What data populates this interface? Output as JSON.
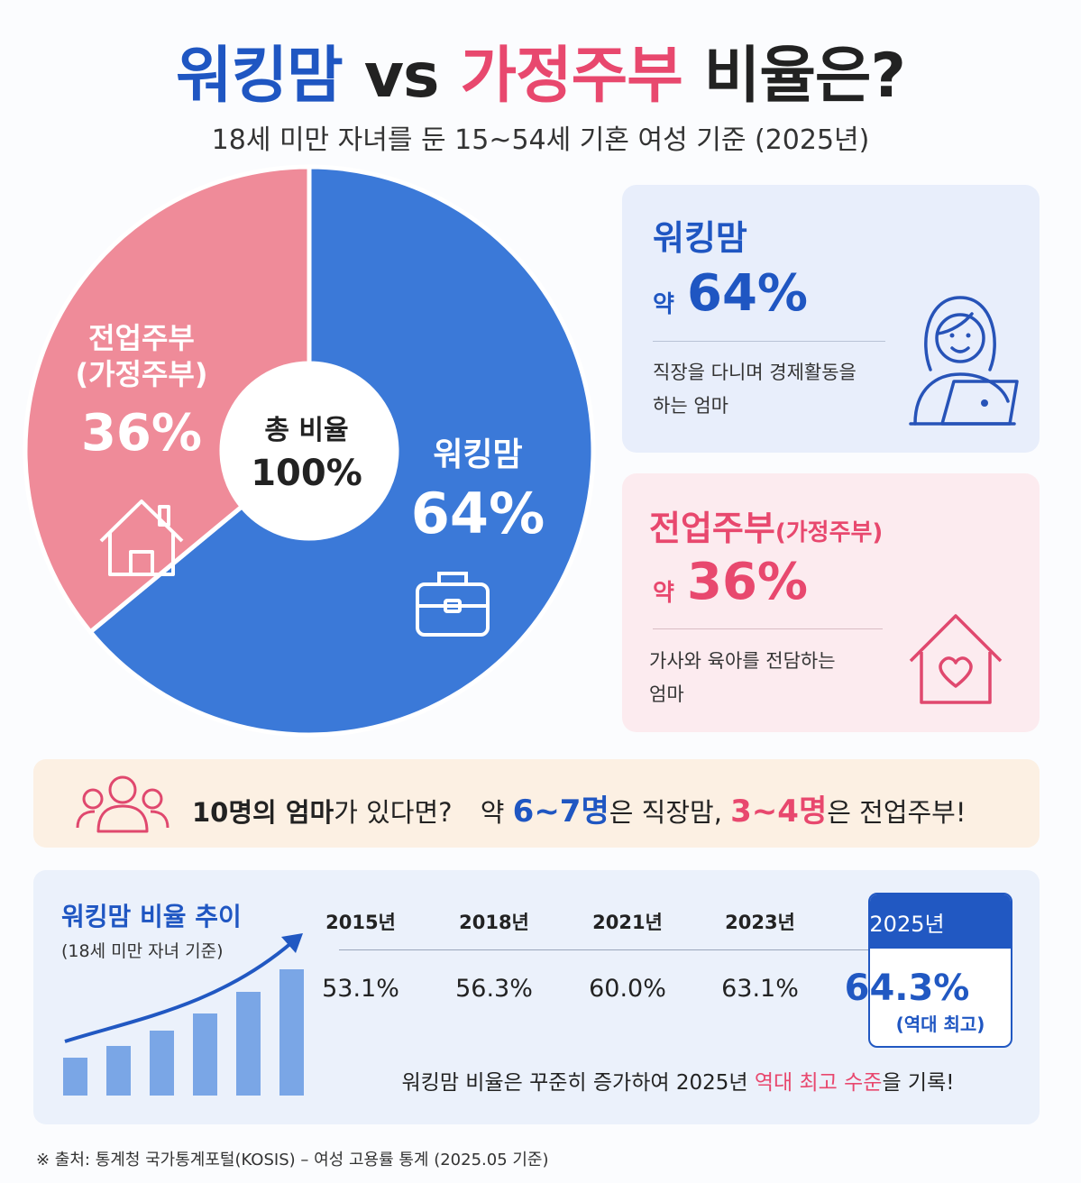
{
  "header": {
    "title_parts": [
      "워킹맘",
      "vs",
      "가정주부",
      "비율은?"
    ],
    "subtitle": "18세 미만 자녀를 둔 15~54세 기혼 여성 기준 (2025년)"
  },
  "chart_data": {
    "type": "pie",
    "categories": [
      "워킹맘",
      "전업주부\n(가정주부)"
    ],
    "values": [
      64,
      36
    ],
    "value_labels": [
      "64%",
      "36%"
    ],
    "colors": [
      "#3b79d8",
      "#ef8b99"
    ],
    "center_label": "총 비율",
    "center_value": "100%"
  },
  "cards": [
    {
      "name": "워킹맘",
      "prefix": "약",
      "value": "64%",
      "description": "직장을 다니며 경제활동을\n하는 엄마"
    },
    {
      "name": "전업주부",
      "name_note": "(가정주부)",
      "prefix": "약",
      "value": "36%",
      "description": "가사와 육아를 전담하는\n엄마"
    }
  ],
  "banner": {
    "parts": [
      "10명의 엄마",
      "가 있다면?",
      "약",
      "6~7명",
      "은 직장맘,",
      "3~4명",
      "은 전업주부!"
    ]
  },
  "trend": {
    "title": "워킹맘 비율 추이",
    "subtitle": "(18세 미만 자녀 기준)",
    "years": [
      "2015년",
      "2018년",
      "2021년",
      "2023년",
      "2025년"
    ],
    "values": [
      "53.1%",
      "56.3%",
      "60.0%",
      "63.1%",
      "64.3%"
    ],
    "highlight_note": "(역대 최고)",
    "summary_parts": [
      "워킹맘 비율은 꾸준히 증가하여 2025년",
      "역대 최고 수준",
      "을 기록!"
    ]
  },
  "footer": {
    "source": "※ 출처: 통계청 국가통계포털(KOSIS) – 여성 고용률 통계 (2025.05 기준)"
  }
}
